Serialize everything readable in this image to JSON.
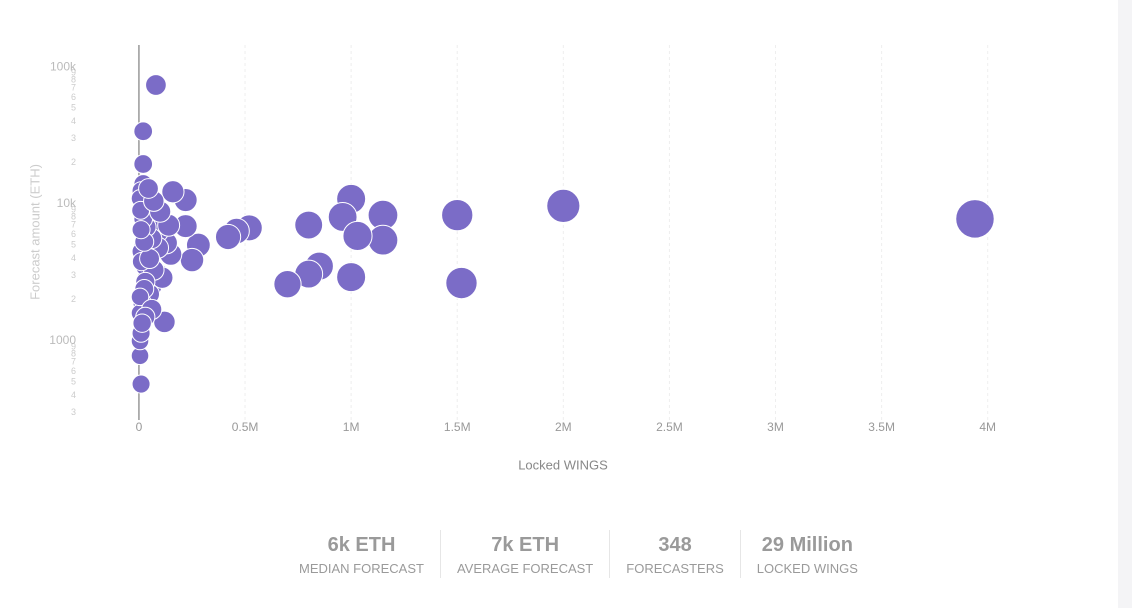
{
  "chart_data": {
    "type": "scatter",
    "x_label": "Locked WINGS",
    "y_label": "Forecast amount (ETH)",
    "log_y": true,
    "grid": true,
    "color": "#7b6cc7",
    "xlim": [
      -160000,
      4270000
    ],
    "ylim": [
      265,
      145000
    ],
    "xticks": [
      0,
      {
        "value": 500000,
        "label": "0.5M"
      },
      {
        "value": 1000000,
        "label": "1M"
      },
      {
        "value": 1500000,
        "label": "1.5M"
      },
      {
        "value": 2000000,
        "label": "2M"
      },
      {
        "value": 2500000,
        "label": "2.5M"
      },
      {
        "value": 3000000,
        "label": "3M"
      },
      {
        "value": 3500000,
        "label": "3.5M"
      },
      {
        "value": 4000000,
        "label": "4M"
      }
    ],
    "yticks": [
      {
        "value": 300,
        "label": "3"
      },
      {
        "value": 400,
        "label": "4"
      },
      {
        "value": 500,
        "label": "5"
      },
      {
        "value": 600,
        "label": "6"
      },
      {
        "value": 700,
        "label": "7"
      },
      {
        "value": 800,
        "label": "8"
      },
      {
        "value": 900,
        "label": "9"
      },
      1000,
      {
        "value": 2000,
        "label": "2"
      },
      {
        "value": 3000,
        "label": "3"
      },
      {
        "value": 4000,
        "label": "4"
      },
      {
        "value": 5000,
        "label": "5"
      },
      {
        "value": 6000,
        "label": "6"
      },
      {
        "value": 7000,
        "label": "7"
      },
      {
        "value": 8000,
        "label": "8"
      },
      {
        "value": 9000,
        "label": "9"
      },
      {
        "value": 10000,
        "label": "10k"
      },
      {
        "value": 20000,
        "label": "2"
      },
      {
        "value": 30000,
        "label": "3"
      },
      {
        "value": 40000,
        "label": "4"
      },
      {
        "value": 50000,
        "label": "5"
      },
      {
        "value": 60000,
        "label": "6"
      },
      {
        "value": 70000,
        "label": "7"
      },
      {
        "value": 80000,
        "label": "8"
      },
      {
        "value": 90000,
        "label": "9"
      },
      {
        "value": 100000,
        "label": "100k"
      }
    ],
    "x": [
      3940000,
      2000000,
      1500000,
      1520000,
      1150000,
      1150000,
      1000000,
      960000,
      1030000,
      1000000,
      850000,
      800000,
      700000,
      800000,
      520000,
      460000,
      420000,
      280000,
      250000,
      220000,
      220000,
      160000,
      120000,
      80000,
      20000,
      20000,
      10000,
      5000,
      5000,
      10000,
      150000,
      130000,
      100000,
      90000,
      60000,
      50000,
      40000,
      30000,
      20000,
      10000,
      5000,
      80000,
      60000,
      40000,
      20000,
      10000,
      110000,
      70000,
      50000,
      30000,
      15000,
      5000,
      90000,
      60000,
      35000,
      20000,
      8000,
      140000,
      100000,
      70000,
      45000,
      25000,
      12000,
      5000,
      60000,
      30000,
      15000,
      50000,
      25000,
      10000
    ],
    "values": [
      7800,
      9700,
      8300,
      2650,
      8300,
      5450,
      10900,
      8050,
      5850,
      2930,
      3520,
      3080,
      2600,
      7030,
      6700,
      6350,
      5750,
      5020,
      3900,
      10700,
      6900,
      12300,
      1380,
      74000,
      34000,
      19600,
      485,
      780,
      1000,
      1140,
      4300,
      5200,
      3000,
      6300,
      2500,
      8200,
      4100,
      3500,
      14000,
      12500,
      11000,
      9500,
      7200,
      6000,
      5000,
      4500,
      2900,
      3300,
      2200,
      2700,
      1900,
      1600,
      4800,
      5600,
      6800,
      7800,
      9000,
      7000,
      8800,
      10500,
      13000,
      2400,
      3800,
      2100,
      1700,
      1500,
      1350,
      4000,
      5300,
      6500
    ]
  },
  "stats": [
    {
      "value": "6k ETH",
      "label": "MEDIAN FORECAST"
    },
    {
      "value": "7k ETH",
      "label": "AVERAGE FORECAST"
    },
    {
      "value": "348",
      "label": "FORECASTERS"
    },
    {
      "value": "29 Million",
      "label": "LOCKED WINGS"
    }
  ]
}
